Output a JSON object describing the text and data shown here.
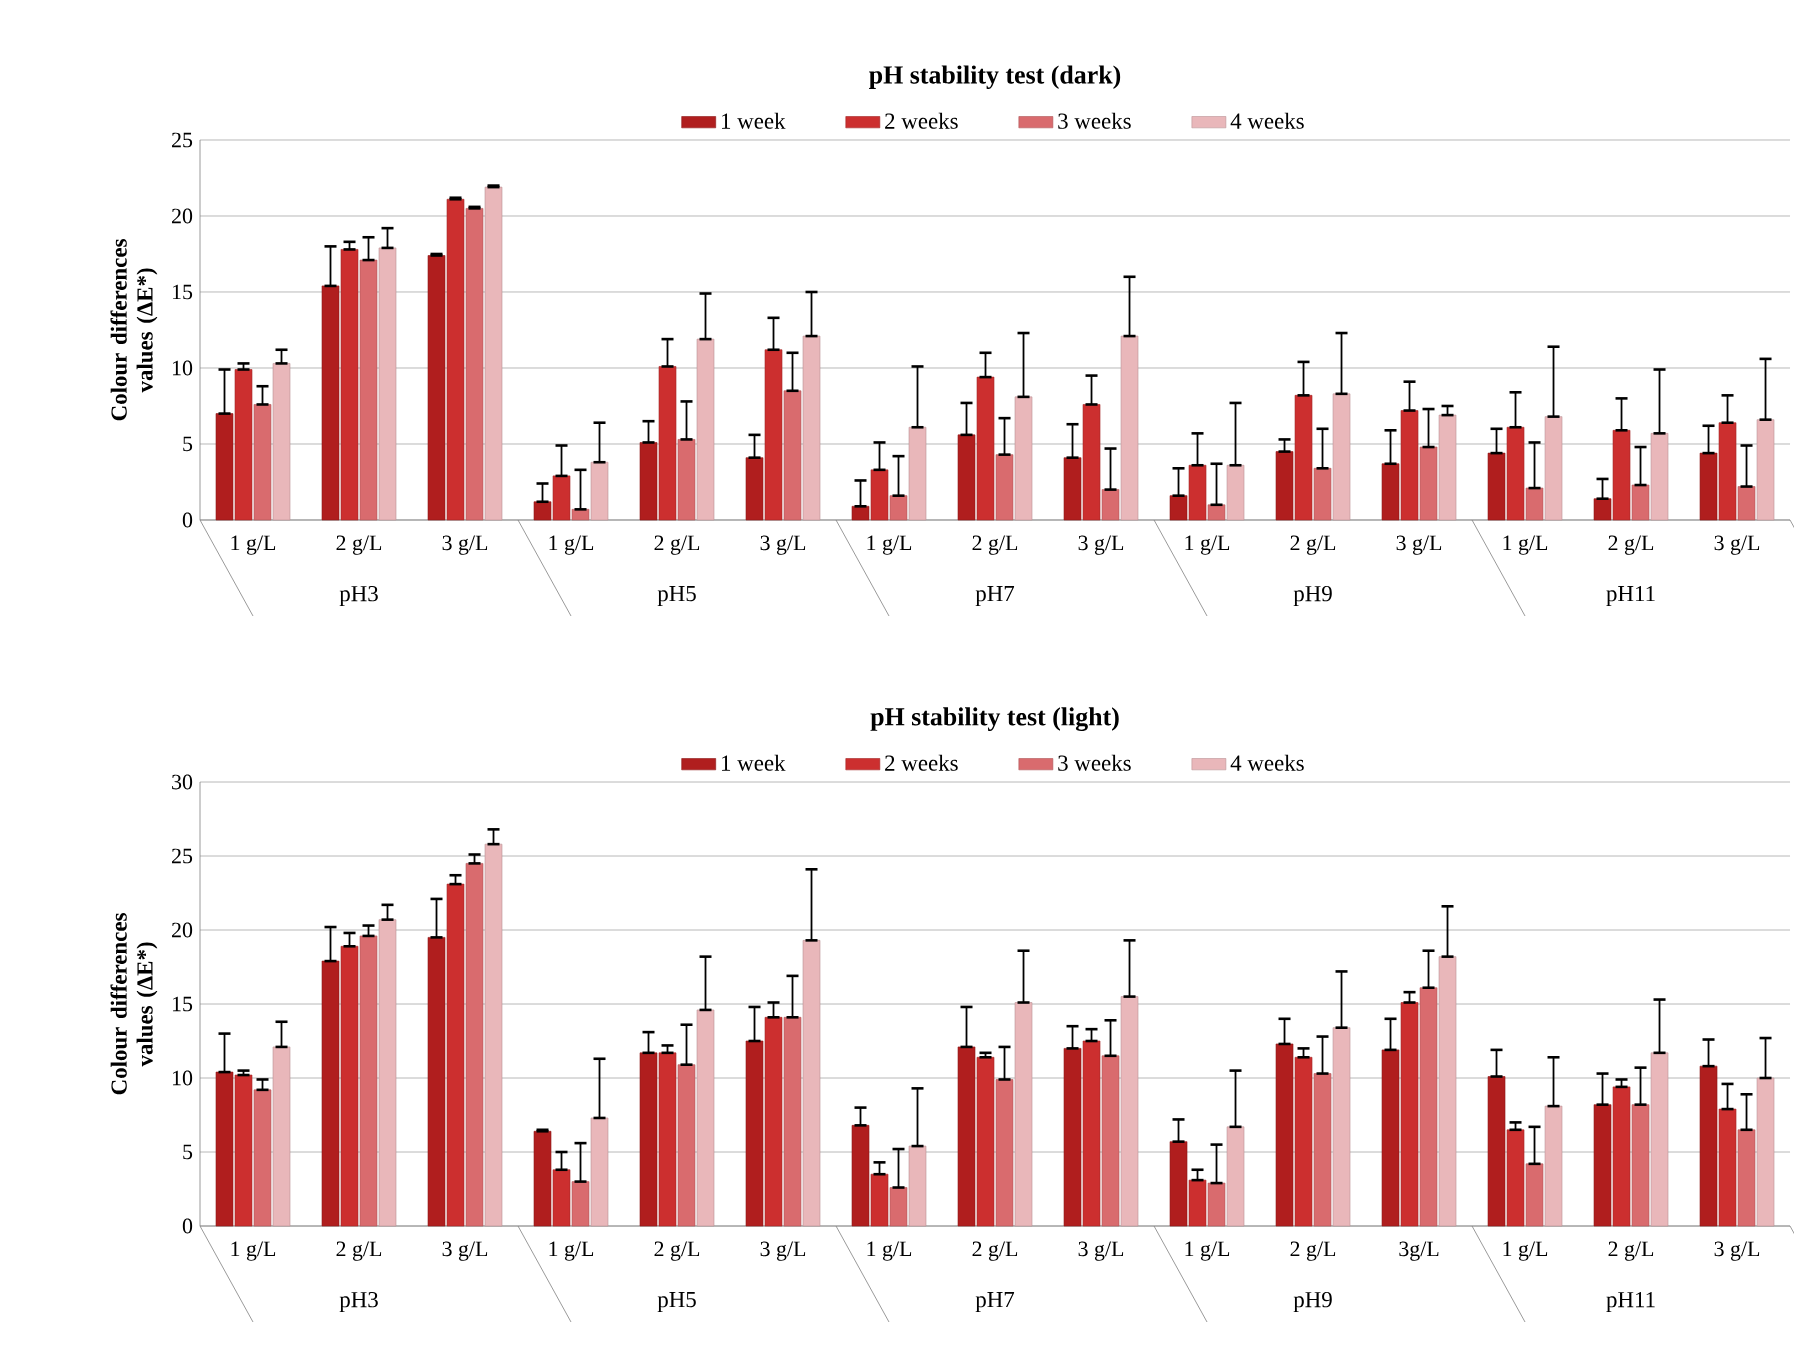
{
  "chart_data": [
    {
      "type": "bar",
      "title": "pH stability test (dark)",
      "ylabel": "Colour differences values (ΔE*)",
      "categories": [
        "1 g/L",
        "2 g/L",
        "3 g/L",
        "1 g/L",
        "2 g/L",
        "3 g/L",
        "1 g/L",
        "2 g/L",
        "3 g/L",
        "1 g/L",
        "2 g/L",
        "3 g/L",
        "1 g/L",
        "2 g/L",
        "3 g/L"
      ],
      "annotations": [
        "pH3",
        "pH5",
        "pH7",
        "pH9",
        "pH11"
      ],
      "series": [
        {
          "name": "1 week",
          "color": "#b01e1e",
          "values": [
            7.0,
            15.4,
            17.4,
            1.2,
            5.1,
            4.1,
            0.9,
            5.6,
            4.1,
            1.6,
            4.5,
            3.7,
            4.4,
            1.4,
            4.4
          ],
          "errors": [
            [
              7.0,
              9.9
            ],
            [
              15.4,
              18.0
            ],
            [
              17.4,
              17.5
            ],
            [
              1.2,
              2.4
            ],
            [
              5.1,
              6.5
            ],
            [
              4.1,
              5.6
            ],
            [
              0.9,
              2.6
            ],
            [
              5.6,
              7.7
            ],
            [
              4.1,
              6.3
            ],
            [
              1.6,
              3.4
            ],
            [
              4.5,
              5.3
            ],
            [
              3.7,
              5.9
            ],
            [
              4.4,
              6.0
            ],
            [
              1.4,
              2.7
            ],
            [
              4.4,
              6.2
            ]
          ]
        },
        {
          "name": "2 weeks",
          "color": "#cc2f2f",
          "values": [
            9.9,
            17.8,
            21.1,
            2.9,
            10.1,
            11.2,
            3.3,
            9.4,
            7.6,
            3.6,
            8.2,
            7.2,
            6.1,
            5.9,
            6.4
          ],
          "errors": [
            [
              9.9,
              10.3
            ],
            [
              17.8,
              18.3
            ],
            [
              21.1,
              21.2
            ],
            [
              2.9,
              4.9
            ],
            [
              10.1,
              11.9
            ],
            [
              11.2,
              13.3
            ],
            [
              3.3,
              5.1
            ],
            [
              9.4,
              11.0
            ],
            [
              7.6,
              9.5
            ],
            [
              3.6,
              5.7
            ],
            [
              8.2,
              10.4
            ],
            [
              7.2,
              9.1
            ],
            [
              6.1,
              8.4
            ],
            [
              5.9,
              8.0
            ],
            [
              6.4,
              8.2
            ]
          ]
        },
        {
          "name": "3 weeks",
          "color": "#d96b6e",
          "values": [
            7.6,
            17.1,
            20.5,
            0.7,
            5.3,
            8.5,
            1.6,
            4.3,
            2.0,
            1.0,
            3.4,
            4.8,
            2.1,
            2.3,
            2.2
          ],
          "errors": [
            [
              7.6,
              8.8
            ],
            [
              17.1,
              18.6
            ],
            [
              20.5,
              20.6
            ],
            [
              0.7,
              3.3
            ],
            [
              5.3,
              7.8
            ],
            [
              8.5,
              11.0
            ],
            [
              1.6,
              4.2
            ],
            [
              4.3,
              6.7
            ],
            [
              2.0,
              4.7
            ],
            [
              1.0,
              3.7
            ],
            [
              3.4,
              6.0
            ],
            [
              4.8,
              7.3
            ],
            [
              2.1,
              5.1
            ],
            [
              2.3,
              4.8
            ],
            [
              2.2,
              4.9
            ]
          ]
        },
        {
          "name": "4 weeks",
          "color": "#e9b7ba",
          "values": [
            10.3,
            17.9,
            21.9,
            3.8,
            11.9,
            12.1,
            6.1,
            8.1,
            12.1,
            3.6,
            8.3,
            6.9,
            6.8,
            5.7,
            6.6
          ],
          "errors": [
            [
              10.3,
              11.2
            ],
            [
              17.9,
              19.2
            ],
            [
              21.9,
              22.0
            ],
            [
              3.8,
              6.4
            ],
            [
              11.9,
              14.9
            ],
            [
              12.1,
              15.0
            ],
            [
              6.1,
              10.1
            ],
            [
              8.1,
              12.3
            ],
            [
              12.1,
              16.0
            ],
            [
              3.6,
              7.7
            ],
            [
              8.3,
              12.3
            ],
            [
              6.9,
              7.5
            ],
            [
              6.8,
              11.4
            ],
            [
              5.7,
              9.9
            ],
            [
              6.6,
              10.6
            ]
          ]
        }
      ],
      "ylim": [
        0,
        25
      ],
      "yticks": [
        0,
        5,
        10,
        15,
        20,
        25
      ],
      "grid": "y",
      "legend": "top"
    },
    {
      "type": "bar",
      "title": "pH stability test (light)",
      "ylabel": "Colour differences values (ΔE*)",
      "categories": [
        "1 g/L",
        "2 g/L",
        "3 g/L",
        "1 g/L",
        "2 g/L",
        "3 g/L",
        "1 g/L",
        "2 g/L",
        "3 g/L",
        "1 g/L",
        "2 g/L",
        "3g/L",
        "1 g/L",
        "2 g/L",
        "3 g/L"
      ],
      "annotations": [
        "pH3",
        "pH5",
        "pH7",
        "pH9",
        "pH11"
      ],
      "series": [
        {
          "name": "1 week",
          "color": "#b01e1e",
          "values": [
            10.4,
            17.9,
            19.5,
            6.4,
            11.7,
            12.5,
            6.8,
            12.1,
            12.0,
            5.7,
            12.3,
            11.9,
            10.1,
            8.2,
            10.8
          ],
          "errors": [
            [
              10.4,
              13.0
            ],
            [
              17.9,
              20.2
            ],
            [
              19.5,
              22.1
            ],
            [
              6.4,
              6.5
            ],
            [
              11.7,
              13.1
            ],
            [
              12.5,
              14.8
            ],
            [
              6.8,
              8.0
            ],
            [
              12.1,
              14.8
            ],
            [
              12.0,
              13.5
            ],
            [
              5.7,
              7.2
            ],
            [
              12.3,
              14.0
            ],
            [
              11.9,
              14.0
            ],
            [
              10.1,
              11.9
            ],
            [
              8.2,
              10.3
            ],
            [
              10.8,
              12.6
            ]
          ]
        },
        {
          "name": "2 weeks",
          "color": "#cc2f2f",
          "values": [
            10.2,
            18.9,
            23.1,
            3.8,
            11.7,
            14.1,
            3.5,
            11.4,
            12.5,
            3.1,
            11.4,
            15.1,
            6.5,
            9.4,
            7.9
          ],
          "errors": [
            [
              10.2,
              10.5
            ],
            [
              18.9,
              19.8
            ],
            [
              23.1,
              23.7
            ],
            [
              3.8,
              5.0
            ],
            [
              11.7,
              12.2
            ],
            [
              14.1,
              15.1
            ],
            [
              3.5,
              4.3
            ],
            [
              11.4,
              11.7
            ],
            [
              12.5,
              13.3
            ],
            [
              3.1,
              3.8
            ],
            [
              11.4,
              12.0
            ],
            [
              15.1,
              15.8
            ],
            [
              6.5,
              7.0
            ],
            [
              9.4,
              9.9
            ],
            [
              7.9,
              9.6
            ]
          ]
        },
        {
          "name": "3 weeks",
          "color": "#d96b6e",
          "values": [
            9.2,
            19.6,
            24.5,
            3.0,
            10.9,
            14.1,
            2.6,
            9.9,
            11.5,
            2.9,
            10.3,
            16.1,
            4.2,
            8.2,
            6.5
          ],
          "errors": [
            [
              9.2,
              9.9
            ],
            [
              19.6,
              20.3
            ],
            [
              24.5,
              25.1
            ],
            [
              3.0,
              5.6
            ],
            [
              10.9,
              13.6
            ],
            [
              14.1,
              16.9
            ],
            [
              2.6,
              5.2
            ],
            [
              9.9,
              12.1
            ],
            [
              11.5,
              13.9
            ],
            [
              2.9,
              5.5
            ],
            [
              10.3,
              12.8
            ],
            [
              16.1,
              18.6
            ],
            [
              4.2,
              6.7
            ],
            [
              8.2,
              10.7
            ],
            [
              6.5,
              8.9
            ]
          ]
        },
        {
          "name": "4 weeks",
          "color": "#e9b7ba",
          "values": [
            12.1,
            20.7,
            25.8,
            7.3,
            14.6,
            19.3,
            5.4,
            15.1,
            15.5,
            6.7,
            13.4,
            18.2,
            8.1,
            11.7,
            10.0
          ],
          "errors": [
            [
              12.1,
              13.8
            ],
            [
              20.7,
              21.7
            ],
            [
              25.8,
              26.8
            ],
            [
              7.3,
              11.3
            ],
            [
              14.6,
              18.2
            ],
            [
              19.3,
              24.1
            ],
            [
              5.4,
              9.3
            ],
            [
              15.1,
              18.6
            ],
            [
              15.5,
              19.3
            ],
            [
              6.7,
              10.5
            ],
            [
              13.4,
              17.2
            ],
            [
              18.2,
              21.6
            ],
            [
              8.1,
              11.4
            ],
            [
              11.7,
              15.3
            ],
            [
              10.0,
              12.7
            ]
          ]
        }
      ],
      "ylim": [
        0,
        30
      ],
      "yticks": [
        0,
        5,
        10,
        15,
        20,
        25,
        30
      ],
      "grid": "y",
      "legend": "top"
    }
  ]
}
